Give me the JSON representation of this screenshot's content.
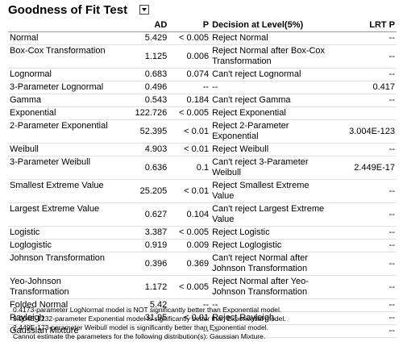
{
  "header": {
    "title": "Goodness of Fit Test"
  },
  "table": {
    "columns": [
      null,
      "AD",
      "P",
      "Decision at Level(5%)",
      "LRT P"
    ],
    "rows": [
      [
        "Normal",
        "5.429",
        "< 0.005",
        "Reject Normal",
        "--"
      ],
      [
        "Box-Cox Transformation",
        "1.125",
        "0.006",
        "Reject Normal after Box-Cox Transformation",
        "--"
      ],
      [
        "Lognormal",
        "0.683",
        "0.074",
        "Can't reject Lognormal",
        "--"
      ],
      [
        "3-Parameter Lognormal",
        "0.496",
        "--",
        "--",
        "0.417"
      ],
      [
        "Gamma",
        "0.543",
        "0.184",
        "Can't reject Gamma",
        "--"
      ],
      [
        "Exponential",
        "122.726",
        "< 0.005",
        "Reject Exponential",
        null
      ],
      [
        "2-Parameter Exponential",
        "52.395",
        "< 0.01",
        "Reject 2-Parameter Exponential",
        "3.004E-123"
      ],
      [
        "Weibull",
        "4.903",
        "< 0.01",
        "Reject Weibull",
        "--"
      ],
      [
        "3-Parameter Weibull",
        "0.636",
        "0.1",
        "Can't reject 3-Parameter Weibull",
        "2.449E-17"
      ],
      [
        "Smallest Extreme Value",
        "25.205",
        "< 0.01",
        "Reject Smallest Extreme Value",
        "--"
      ],
      [
        "Largest Extreme Value",
        "0.627",
        "0.104",
        "Can't reject Largest Extreme Value",
        "--"
      ],
      [
        "Logistic",
        "3.387",
        "< 0.005",
        "Reject Logistic",
        "--"
      ],
      [
        "Loglogistic",
        "0.919",
        "0.009",
        "Reject Loglogistic",
        "--"
      ],
      [
        "Johnson Transformation",
        "0.396",
        "0.369",
        "Can't reject Normal after Johnson Transformation",
        "--"
      ],
      [
        "Yeo-Johnson Transformation",
        "1.172",
        "< 0.005",
        "Reject Normal after Yeo-Johnson Transformation",
        "--"
      ],
      [
        "Folded Normal",
        "5.42",
        "--",
        "--",
        "--"
      ],
      [
        "Rayleigh",
        "31.95",
        "< 0.01",
        "Reject Rayleigh",
        "--"
      ],
      [
        "Gaussian Mixture",
        null,
        "--",
        "--",
        "--"
      ]
    ]
  },
  "notes": [
    "0.4173-parameter LogNormal model is NOT significantly better than Exponential model.",
    "3.004E-1232-parameter Exponential model is significantly better than Exponential model.",
    "2.449E-173-parameter Weibull model is significantly better than Exponential model.",
    "Cannot estimate the parameters for the following distribution(s): Gaussian Mixture."
  ]
}
